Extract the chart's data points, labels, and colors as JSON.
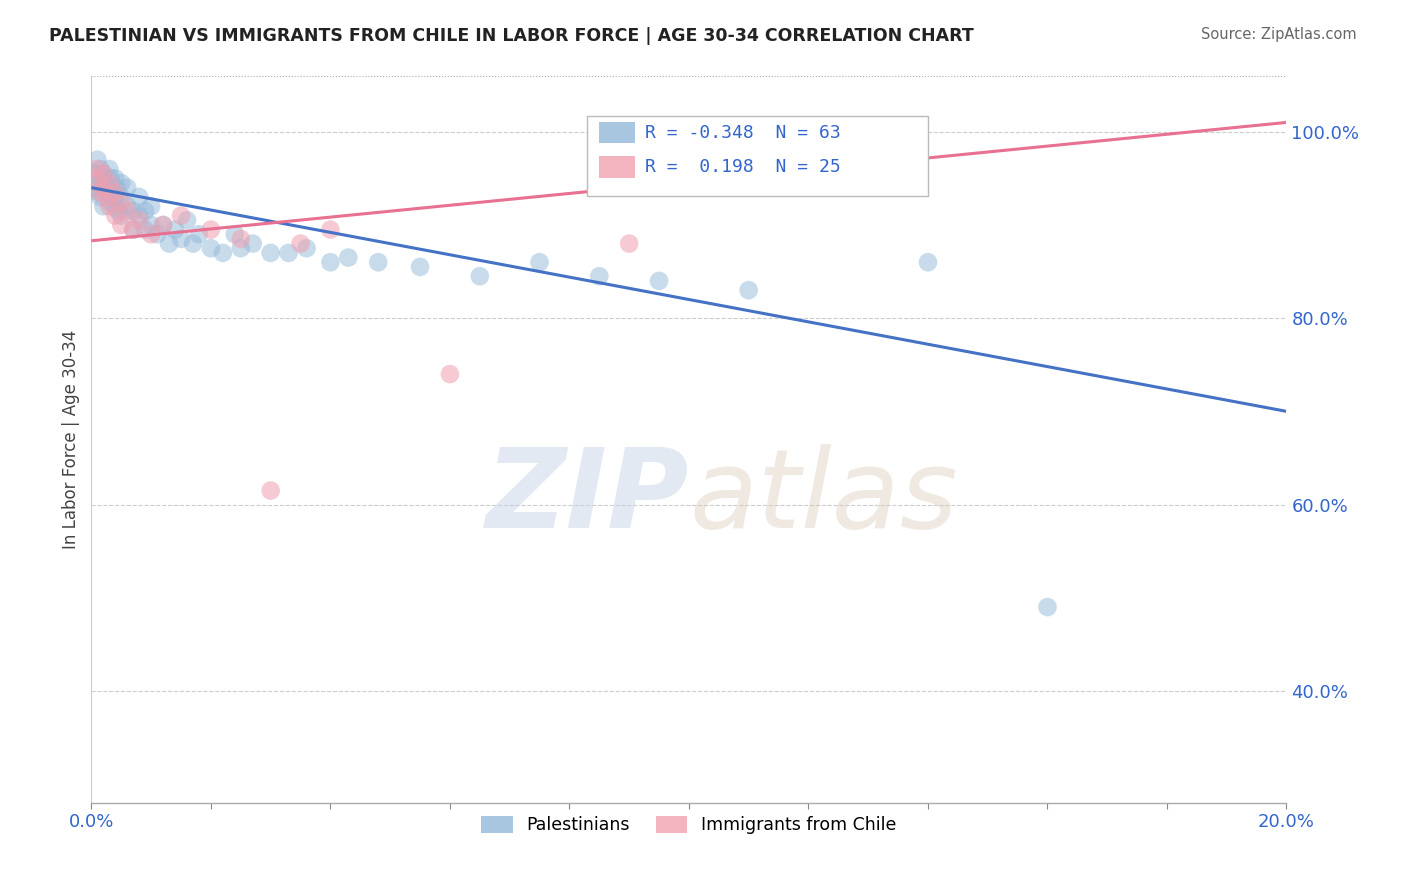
{
  "title": "PALESTINIAN VS IMMIGRANTS FROM CHILE IN LABOR FORCE | AGE 30-34 CORRELATION CHART",
  "source": "Source: ZipAtlas.com",
  "ylabel": "In Labor Force | Age 30-34",
  "xlim": [
    0.0,
    0.2
  ],
  "ylim": [
    0.28,
    1.06
  ],
  "yticks": [
    0.4,
    0.6,
    0.8,
    1.0
  ],
  "yticklabels": [
    "40.0%",
    "60.0%",
    "80.0%",
    "100.0%"
  ],
  "blue_R": -0.348,
  "blue_N": 63,
  "pink_R": 0.198,
  "pink_N": 25,
  "blue_color": "#92b8d8",
  "pink_color": "#f0a0b0",
  "blue_line_color": "#4472c4",
  "pink_line_color": "#e87090",
  "watermark_zip": "ZIP",
  "watermark_atlas": "atlas",
  "blue_scatter_x": [
    0.0005,
    0.0008,
    0.001,
    0.001,
    0.0012,
    0.0015,
    0.0015,
    0.0018,
    0.002,
    0.002,
    0.002,
    0.0022,
    0.0025,
    0.003,
    0.003,
    0.003,
    0.0032,
    0.0035,
    0.004,
    0.004,
    0.004,
    0.0042,
    0.0045,
    0.005,
    0.005,
    0.005,
    0.006,
    0.006,
    0.007,
    0.007,
    0.008,
    0.008,
    0.009,
    0.009,
    0.01,
    0.01,
    0.011,
    0.012,
    0.013,
    0.014,
    0.015,
    0.016,
    0.017,
    0.018,
    0.02,
    0.022,
    0.024,
    0.025,
    0.027,
    0.03,
    0.033,
    0.036,
    0.04,
    0.043,
    0.048,
    0.055,
    0.065,
    0.075,
    0.085,
    0.095,
    0.11,
    0.14,
    0.16
  ],
  "blue_scatter_y": [
    0.955,
    0.94,
    0.97,
    0.945,
    0.935,
    0.93,
    0.96,
    0.95,
    0.94,
    0.92,
    0.955,
    0.945,
    0.935,
    0.94,
    0.96,
    0.925,
    0.95,
    0.935,
    0.93,
    0.95,
    0.92,
    0.94,
    0.915,
    0.93,
    0.91,
    0.945,
    0.92,
    0.94,
    0.915,
    0.895,
    0.91,
    0.93,
    0.895,
    0.915,
    0.9,
    0.92,
    0.89,
    0.9,
    0.88,
    0.895,
    0.885,
    0.905,
    0.88,
    0.89,
    0.875,
    0.87,
    0.89,
    0.875,
    0.88,
    0.87,
    0.87,
    0.875,
    0.86,
    0.865,
    0.86,
    0.855,
    0.845,
    0.86,
    0.845,
    0.84,
    0.83,
    0.86,
    0.49
  ],
  "pink_scatter_x": [
    0.0005,
    0.001,
    0.0015,
    0.002,
    0.002,
    0.0025,
    0.003,
    0.003,
    0.004,
    0.004,
    0.005,
    0.005,
    0.006,
    0.007,
    0.008,
    0.01,
    0.012,
    0.015,
    0.02,
    0.025,
    0.03,
    0.035,
    0.04,
    0.06,
    0.09
  ],
  "pink_scatter_y": [
    0.95,
    0.96,
    0.935,
    0.94,
    0.955,
    0.93,
    0.945,
    0.92,
    0.935,
    0.91,
    0.925,
    0.9,
    0.915,
    0.895,
    0.905,
    0.89,
    0.9,
    0.91,
    0.895,
    0.885,
    0.615,
    0.88,
    0.895,
    0.74,
    0.88
  ],
  "blue_trendline_x": [
    0.0,
    0.2
  ],
  "blue_trendline_y": [
    0.94,
    0.7
  ],
  "pink_trendline_x": [
    0.0,
    0.2
  ],
  "pink_trendline_y": [
    0.883,
    1.01
  ],
  "background_color": "#ffffff",
  "grid_color": "#cccccc",
  "legend_label_blue": "Palestinians",
  "legend_label_pink": "Immigrants from Chile"
}
